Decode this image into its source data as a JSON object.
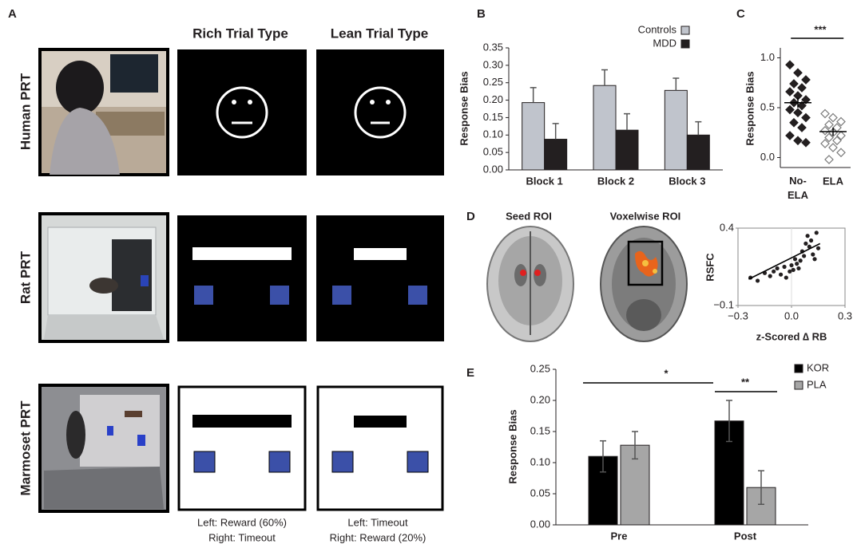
{
  "panel_a": {
    "letter": "A",
    "columns": [
      "Rich Trial Type",
      "Lean Trial Type"
    ],
    "rows": [
      "Human PRT",
      "Rat PRT",
      "Marmoset PRT"
    ],
    "captions": [
      [
        "Left: Reward (60%)",
        "Right: Timeout"
      ],
      [
        "Left: Timeout",
        "Right: Reward (20%)"
      ]
    ]
  },
  "panel_d": {
    "letter": "D",
    "titles": [
      "Seed ROI",
      "Voxelwise ROI"
    ]
  },
  "chart_data": [
    {
      "type": "bar",
      "panel": "B",
      "ylabel": "Response Bias",
      "categories": [
        "Block 1",
        "Block 2",
        "Block 3"
      ],
      "series": [
        {
          "name": "Controls",
          "color": "#c0c4cc",
          "values": [
            0.193,
            0.242,
            0.228
          ],
          "errors": [
            0.043,
            0.045,
            0.035
          ]
        },
        {
          "name": "MDD",
          "color": "#231f20",
          "values": [
            0.088,
            0.114,
            0.1
          ],
          "errors": [
            0.045,
            0.047,
            0.038
          ]
        }
      ],
      "ylim": [
        0,
        0.35
      ],
      "yticks": [
        {
          "value": 0,
          "label": "0.00"
        },
        0.05,
        {
          "value": 0.1,
          "label": "0.10"
        },
        0.15,
        {
          "value": 0.2,
          "label": "0.20"
        },
        0.25,
        {
          "value": 0.3,
          "label": "0.30"
        },
        0.35
      ],
      "legend": "top-right"
    },
    {
      "type": "strip",
      "panel": "C",
      "ylabel": "Response Bias",
      "categories": [
        "No-ELA",
        "ELA"
      ],
      "series": [
        {
          "color": "#231f20",
          "marker_fill": true,
          "values": [
            0.93,
            0.85,
            0.78,
            0.74,
            0.7,
            0.66,
            0.62,
            0.58,
            0.55,
            0.52,
            0.48,
            0.45,
            0.4,
            0.35,
            0.3,
            0.22,
            0.17,
            0.15
          ]
        },
        {
          "color": "#231f20",
          "marker_fill": false,
          "values": [
            0.44,
            0.4,
            0.36,
            0.33,
            0.3,
            0.27,
            0.25,
            0.22,
            0.2,
            0.17,
            0.14,
            0.1,
            0.05,
            -0.02
          ]
        }
      ],
      "means": [
        0.55,
        0.26
      ],
      "sems": [
        0.05,
        0.04
      ],
      "ylim": [
        -0.1,
        1.1
      ],
      "yticks": [
        {
          "value": 0,
          "label": "0.0"
        },
        0.5,
        {
          "value": 1,
          "label": "1.0"
        }
      ],
      "annotations": [
        "***"
      ]
    },
    {
      "type": "scatter",
      "xlabel": "z-Scored ∆ RB",
      "ylabel": "RSFC",
      "x": [
        -0.23,
        -0.19,
        -0.15,
        -0.12,
        -0.1,
        -0.08,
        -0.06,
        -0.04,
        -0.03,
        -0.01,
        0.0,
        0.01,
        0.02,
        0.03,
        0.04,
        0.05,
        0.06,
        0.07,
        0.08,
        0.09,
        0.1,
        0.11,
        0.12,
        0.14,
        0.15,
        0.13
      ],
      "values": [
        0.08,
        0.06,
        0.11,
        0.09,
        0.12,
        0.14,
        0.1,
        0.15,
        0.08,
        0.12,
        0.16,
        0.13,
        0.2,
        0.17,
        0.14,
        0.19,
        0.25,
        0.22,
        0.3,
        0.35,
        0.28,
        0.32,
        0.23,
        0.37,
        0.27,
        0.2
      ],
      "color": "#231f20",
      "trend": {
        "x": [
          -0.24,
          0.16
        ],
        "values": [
          0.07,
          0.3
        ]
      },
      "xlim": [
        -0.3,
        0.3
      ],
      "xticks": [
        {
          "value": -0.3,
          "label": "−0.3"
        },
        {
          "value": 0,
          "label": "0.0"
        },
        0.3
      ],
      "ylim": [
        -0.1,
        0.4
      ],
      "yticks": [
        {
          "value": -0.1,
          "label": "−0.1"
        },
        0.4
      ]
    },
    {
      "type": "bar",
      "panel": "E",
      "ylabel": "Response Bias",
      "categories": [
        "Pre",
        "Post"
      ],
      "series": [
        {
          "name": "KOR",
          "color": "#000000",
          "values": [
            0.11,
            0.167
          ],
          "errors": [
            0.025,
            0.033
          ]
        },
        {
          "name": "PLA",
          "color": "#a6a6a6",
          "values": [
            0.128,
            0.06
          ],
          "errors": [
            0.022,
            0.027
          ]
        }
      ],
      "ylim": [
        0,
        0.25
      ],
      "yticks": [
        {
          "value": 0,
          "label": "0.00"
        },
        0.05,
        {
          "value": 0.1,
          "label": "0.10"
        },
        0.15,
        {
          "value": 0.2,
          "label": "0.20"
        },
        0.25
      ],
      "legend": "top-right",
      "annotations": [
        "*",
        "**"
      ]
    }
  ]
}
